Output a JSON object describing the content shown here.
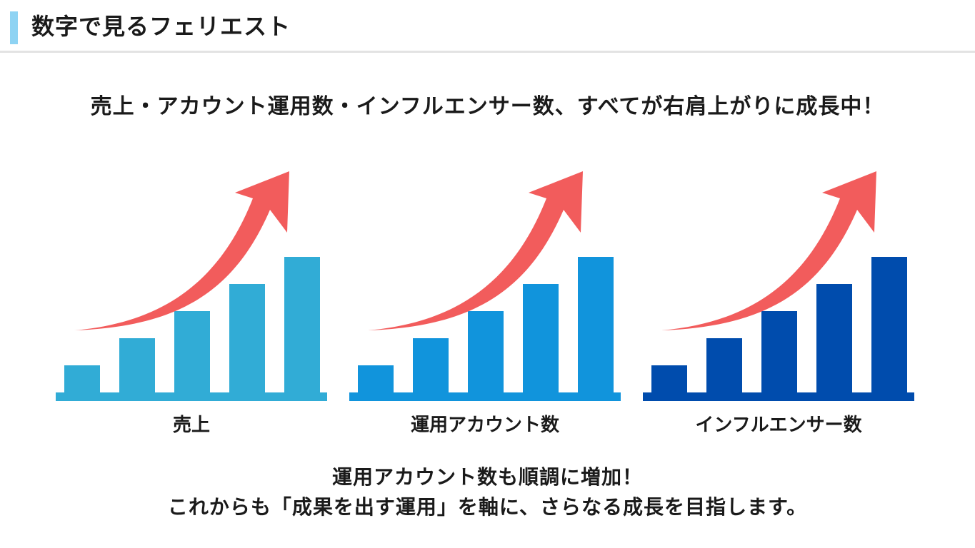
{
  "header": {
    "title": "数字で見るフェリエスト"
  },
  "lead": "売上・アカウント運用数・インフルエンサー数、すべてが右肩上がりに成長中！",
  "colors": {
    "accent_bar": "#8ed3f3",
    "arrow": "#f25c5c",
    "sales": "#31acd6",
    "accounts": "#1194dc",
    "influencers": "#004cad"
  },
  "chart_data": [
    {
      "type": "bar",
      "label": "売上",
      "color": "#31acd6",
      "values": [
        1,
        2,
        3,
        4,
        5
      ],
      "trend": "up",
      "axis_labels": "none"
    },
    {
      "type": "bar",
      "label": "運用アカウント数",
      "color": "#1194dc",
      "values": [
        1,
        2,
        3,
        4,
        5
      ],
      "trend": "up",
      "axis_labels": "none"
    },
    {
      "type": "bar",
      "label": "インフルエンサー数",
      "color": "#004cad",
      "values": [
        1,
        2,
        3,
        4,
        5
      ],
      "trend": "up",
      "axis_labels": "none"
    }
  ],
  "footer": {
    "line1": "運用アカウント数も順調に増加！",
    "line2": "これからも「成果を出す運用」を軸に、さらなる成長を目指します。"
  }
}
